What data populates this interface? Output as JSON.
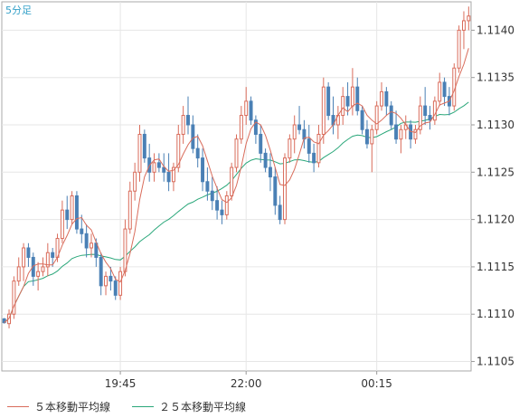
{
  "chart_data": {
    "type": "candlestick",
    "timeframe_label": "5分足",
    "x_tick_labels": [
      "19:45",
      "22:00",
      "00:15"
    ],
    "y_tick_labels": [
      "1.1140",
      "1.1135",
      "1.1130",
      "1.1125",
      "1.1120",
      "1.1115",
      "1.1110",
      "1.1105"
    ],
    "y_range": [
      1.1104,
      1.1143
    ],
    "grid": true,
    "legend": [
      {
        "label": "５本移動平均線",
        "color": "#d96c5b"
      },
      {
        "label": "２５本移動平均線",
        "color": "#2aa77a"
      }
    ],
    "colors": {
      "up": "#d96c5b",
      "down": "#4a80b5",
      "grid": "#e6e6e6",
      "axis": "#999999"
    },
    "ohlc": [
      [
        1.11095,
        1.11096,
        1.1109,
        1.11091
      ],
      [
        1.1109,
        1.11105,
        1.11085,
        1.111
      ],
      [
        1.111,
        1.1114,
        1.11095,
        1.11135
      ],
      [
        1.11135,
        1.1116,
        1.1113,
        1.1115
      ],
      [
        1.1115,
        1.11175,
        1.11135,
        1.1117
      ],
      [
        1.1117,
        1.11175,
        1.1115,
        1.1116
      ],
      [
        1.1116,
        1.11165,
        1.1113,
        1.1114
      ],
      [
        1.1114,
        1.11155,
        1.11125,
        1.11145
      ],
      [
        1.11145,
        1.1116,
        1.1114,
        1.1115
      ],
      [
        1.1115,
        1.11175,
        1.1114,
        1.11165
      ],
      [
        1.11165,
        1.1117,
        1.1115,
        1.1116
      ],
      [
        1.1116,
        1.11185,
        1.11155,
        1.1118
      ],
      [
        1.1118,
        1.1122,
        1.11175,
        1.1121
      ],
      [
        1.1121,
        1.11225,
        1.1119,
        1.112
      ],
      [
        1.112,
        1.1123,
        1.11195,
        1.11225
      ],
      [
        1.11225,
        1.1123,
        1.11185,
        1.1119
      ],
      [
        1.1119,
        1.11205,
        1.11175,
        1.11185
      ],
      [
        1.11185,
        1.11195,
        1.1116,
        1.1117
      ],
      [
        1.1117,
        1.11185,
        1.1116,
        1.11175
      ],
      [
        1.11175,
        1.1118,
        1.1115,
        1.1116
      ],
      [
        1.1116,
        1.11165,
        1.1112,
        1.1113
      ],
      [
        1.1113,
        1.11145,
        1.1112,
        1.1114
      ],
      [
        1.1114,
        1.1115,
        1.11125,
        1.11135
      ],
      [
        1.11135,
        1.1114,
        1.11115,
        1.1112
      ],
      [
        1.1112,
        1.1115,
        1.11115,
        1.11145
      ],
      [
        1.11145,
        1.112,
        1.1114,
        1.1119
      ],
      [
        1.1119,
        1.1124,
        1.11185,
        1.1123
      ],
      [
        1.1123,
        1.1126,
        1.1122,
        1.1125
      ],
      [
        1.1125,
        1.113,
        1.1124,
        1.1129
      ],
      [
        1.1129,
        1.11295,
        1.1126,
        1.11265
      ],
      [
        1.11265,
        1.1128,
        1.1124,
        1.1125
      ],
      [
        1.1125,
        1.1127,
        1.1124,
        1.1126
      ],
      [
        1.1126,
        1.1127,
        1.1125,
        1.11255
      ],
      [
        1.11255,
        1.1127,
        1.1124,
        1.1125
      ],
      [
        1.1125,
        1.1127,
        1.1123,
        1.1124
      ],
      [
        1.1124,
        1.1126,
        1.1123,
        1.11255
      ],
      [
        1.11255,
        1.113,
        1.1125,
        1.1129
      ],
      [
        1.1129,
        1.1132,
        1.1128,
        1.1131
      ],
      [
        1.1131,
        1.1133,
        1.1129,
        1.113
      ],
      [
        1.113,
        1.1131,
        1.1127,
        1.11275
      ],
      [
        1.11275,
        1.1129,
        1.11255,
        1.11265
      ],
      [
        1.11265,
        1.11275,
        1.1123,
        1.1124
      ],
      [
        1.1124,
        1.11255,
        1.1122,
        1.1123
      ],
      [
        1.1123,
        1.11245,
        1.1121,
        1.1122
      ],
      [
        1.1122,
        1.11235,
        1.112,
        1.1121
      ],
      [
        1.1121,
        1.1122,
        1.11195,
        1.11205
      ],
      [
        1.11205,
        1.1123,
        1.112,
        1.11225
      ],
      [
        1.11225,
        1.1126,
        1.1122,
        1.11255
      ],
      [
        1.11255,
        1.1129,
        1.1125,
        1.11285
      ],
      [
        1.11285,
        1.1132,
        1.1128,
        1.1131
      ],
      [
        1.1131,
        1.1134,
        1.113,
        1.11325
      ],
      [
        1.11325,
        1.1133,
        1.113,
        1.11305
      ],
      [
        1.11305,
        1.1131,
        1.1128,
        1.1129
      ],
      [
        1.1129,
        1.113,
        1.1126,
        1.1127
      ],
      [
        1.1127,
        1.11275,
        1.1125,
        1.11255
      ],
      [
        1.11255,
        1.1127,
        1.1123,
        1.11245
      ],
      [
        1.11245,
        1.11255,
        1.11205,
        1.11215
      ],
      [
        1.11215,
        1.11225,
        1.11195,
        1.112
      ],
      [
        1.112,
        1.1127,
        1.11195,
        1.11265
      ],
      [
        1.11265,
        1.1129,
        1.1126,
        1.11285
      ],
      [
        1.11285,
        1.1131,
        1.1127,
        1.113
      ],
      [
        1.113,
        1.1132,
        1.1129,
        1.11295
      ],
      [
        1.11295,
        1.11305,
        1.11275,
        1.11285
      ],
      [
        1.11285,
        1.113,
        1.1126,
        1.1127
      ],
      [
        1.1127,
        1.1128,
        1.1125,
        1.1126
      ],
      [
        1.1126,
        1.113,
        1.11255,
        1.1129
      ],
      [
        1.1129,
        1.1135,
        1.1128,
        1.1134
      ],
      [
        1.1134,
        1.11345,
        1.11305,
        1.1131
      ],
      [
        1.1131,
        1.1133,
        1.1129,
        1.113
      ],
      [
        1.113,
        1.1132,
        1.11285,
        1.1131
      ],
      [
        1.1131,
        1.1134,
        1.113,
        1.1133
      ],
      [
        1.1133,
        1.11345,
        1.1131,
        1.1132
      ],
      [
        1.1132,
        1.1136,
        1.1131,
        1.1134
      ],
      [
        1.1134,
        1.1135,
        1.1131,
        1.11315
      ],
      [
        1.11315,
        1.1132,
        1.1129,
        1.11295
      ],
      [
        1.11295,
        1.11305,
        1.11275,
        1.1128
      ],
      [
        1.1128,
        1.113,
        1.1125,
        1.11295
      ],
      [
        1.11295,
        1.11325,
        1.1129,
        1.1132
      ],
      [
        1.1132,
        1.11345,
        1.11315,
        1.11335
      ],
      [
        1.11335,
        1.1134,
        1.1131,
        1.1132
      ],
      [
        1.1132,
        1.11325,
        1.11295,
        1.113
      ],
      [
        1.113,
        1.11315,
        1.1128,
        1.11285
      ],
      [
        1.11285,
        1.113,
        1.1127,
        1.11295
      ],
      [
        1.11295,
        1.1131,
        1.11285,
        1.113
      ],
      [
        1.113,
        1.11305,
        1.11275,
        1.11285
      ],
      [
        1.11285,
        1.113,
        1.1128,
        1.11295
      ],
      [
        1.11295,
        1.1133,
        1.1129,
        1.1132
      ],
      [
        1.1132,
        1.1134,
        1.113,
        1.1131
      ],
      [
        1.1131,
        1.1132,
        1.11295,
        1.11305
      ],
      [
        1.11305,
        1.1133,
        1.113,
        1.11325
      ],
      [
        1.11325,
        1.11355,
        1.1132,
        1.11345
      ],
      [
        1.11345,
        1.1135,
        1.1132,
        1.1133
      ],
      [
        1.1133,
        1.1134,
        1.1131,
        1.1132
      ],
      [
        1.1132,
        1.11365,
        1.11315,
        1.1136
      ],
      [
        1.1136,
        1.11405,
        1.11355,
        1.114
      ],
      [
        1.114,
        1.1142,
        1.1138,
        1.1141
      ],
      [
        1.1141,
        1.11425,
        1.114,
        1.11415
      ]
    ]
  }
}
